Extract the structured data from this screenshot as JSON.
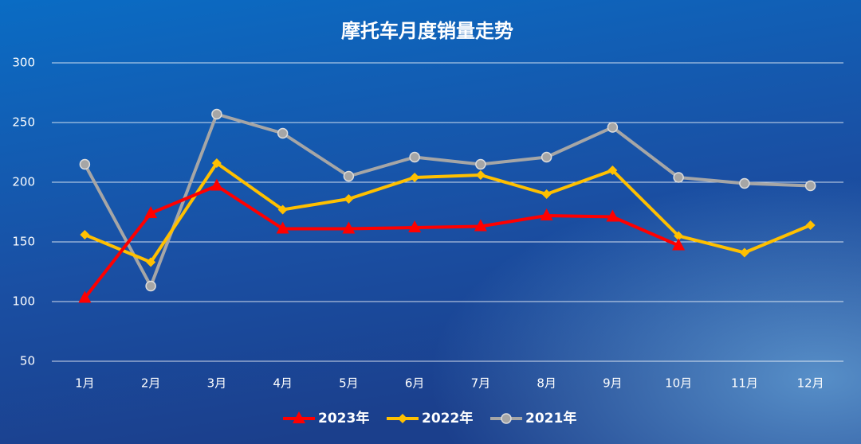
{
  "chart_data": {
    "type": "line",
    "title": "摩托车月度销量走势",
    "categories": [
      "1月",
      "2月",
      "3月",
      "4月",
      "5月",
      "6月",
      "7月",
      "8月",
      "9月",
      "10月",
      "11月",
      "12月"
    ],
    "series": [
      {
        "name": "2023年",
        "color": "#ff0000",
        "marker": "triangle",
        "values": [
          103,
          174,
          197,
          161,
          161,
          162,
          163,
          172,
          171,
          147,
          null,
          null
        ]
      },
      {
        "name": "2022年",
        "color": "#ffc000",
        "marker": "diamond",
        "values": [
          156,
          133,
          216,
          177,
          186,
          204,
          206,
          190,
          210,
          155,
          141,
          164
        ]
      },
      {
        "name": "2021年",
        "color": "#a6a6a6",
        "marker": "circle",
        "values": [
          215,
          113,
          257,
          241,
          205,
          221,
          215,
          221,
          246,
          204,
          199,
          197
        ]
      }
    ],
    "ylim": [
      50,
      300
    ],
    "yticks": [
      50,
      100,
      150,
      200,
      250,
      300
    ],
    "grid": true,
    "legend": "bottom"
  }
}
